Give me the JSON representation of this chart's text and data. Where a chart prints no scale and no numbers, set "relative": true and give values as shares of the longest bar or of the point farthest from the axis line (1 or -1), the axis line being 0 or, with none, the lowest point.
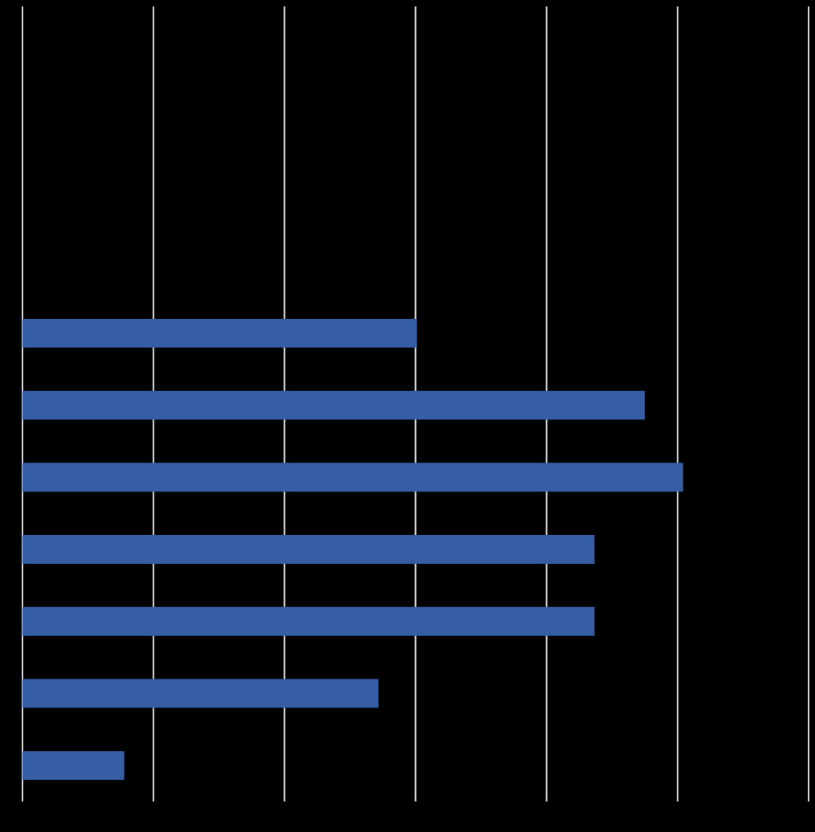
{
  "chart_data": {
    "type": "bar",
    "orientation": "horizontal",
    "relative": true,
    "grid": "x",
    "legend": false,
    "categories": [
      null,
      null,
      null,
      null,
      null,
      null,
      null
    ],
    "color": "#365ea5",
    "values": [
      0.597,
      0.942,
      1,
      0.866,
      0.866,
      0.539,
      0.154
    ]
  }
}
